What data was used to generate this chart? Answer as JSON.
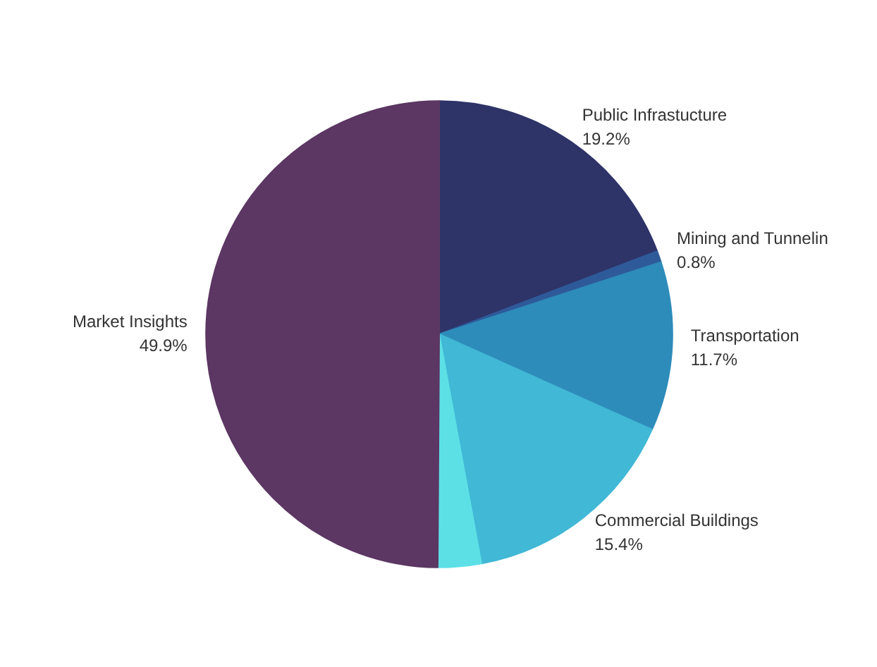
{
  "chart_data": {
    "type": "pie",
    "categories": [
      "Public Infrastucture",
      "Mining and Tunnelin",
      "Transportation",
      "Commercial Buildings",
      null,
      "Market Insights"
    ],
    "values": [
      19.2,
      0.8,
      11.7,
      15.4,
      3.0,
      49.9
    ],
    "colors": [
      "#2e3468",
      "#2f5a9a",
      "#2e8cba",
      "#41b8d5",
      "#5ce0e6",
      "#5c3763"
    ],
    "value_labels": [
      "19.2%",
      "0.8%",
      "11.7%",
      "15.4%",
      null,
      "49.9%"
    ]
  }
}
